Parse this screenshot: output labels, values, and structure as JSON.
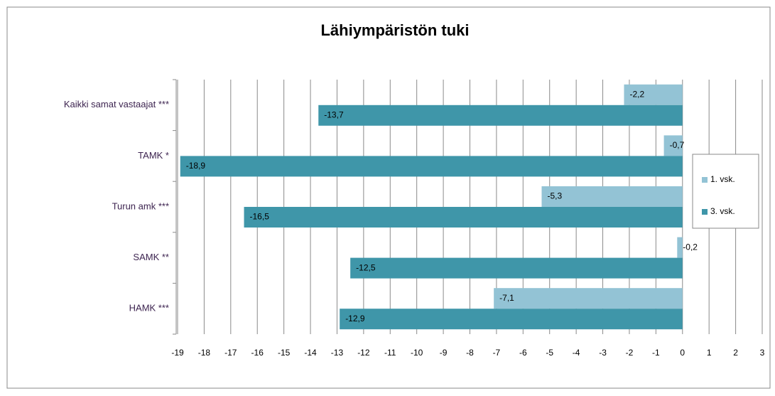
{
  "chart_data": {
    "type": "bar",
    "orientation": "horizontal",
    "title": "Lähiympäristön tuki",
    "categories": [
      "Kaikki samat vastaajat ***",
      "TAMK *",
      "Turun amk ***",
      "SAMK **",
      "HAMK ***"
    ],
    "series": [
      {
        "name": "1. vsk.",
        "color": "#93c3d5",
        "values": [
          -2.2,
          -0.7,
          -5.3,
          -0.2,
          -7.1
        ],
        "value_labels": [
          "-2,2",
          "-0,7",
          "-5,3",
          "-0,2",
          "-7,1"
        ]
      },
      {
        "name": "3. vsk.",
        "color": "#3f96a9",
        "values": [
          -13.7,
          -18.9,
          -16.5,
          -12.5,
          -12.9
        ],
        "value_labels": [
          "-13,7",
          "-18,9",
          "-16,5",
          "-12,5",
          "-12,9"
        ]
      }
    ],
    "xlim": [
      -19,
      3
    ],
    "xticks": [
      -19,
      -18,
      -17,
      -16,
      -15,
      -14,
      -13,
      -12,
      -11,
      -10,
      -9,
      -8,
      -7,
      -6,
      -5,
      -4,
      -3,
      -2,
      -1,
      0,
      1,
      2,
      3
    ],
    "grid": true,
    "legend": "right"
  }
}
